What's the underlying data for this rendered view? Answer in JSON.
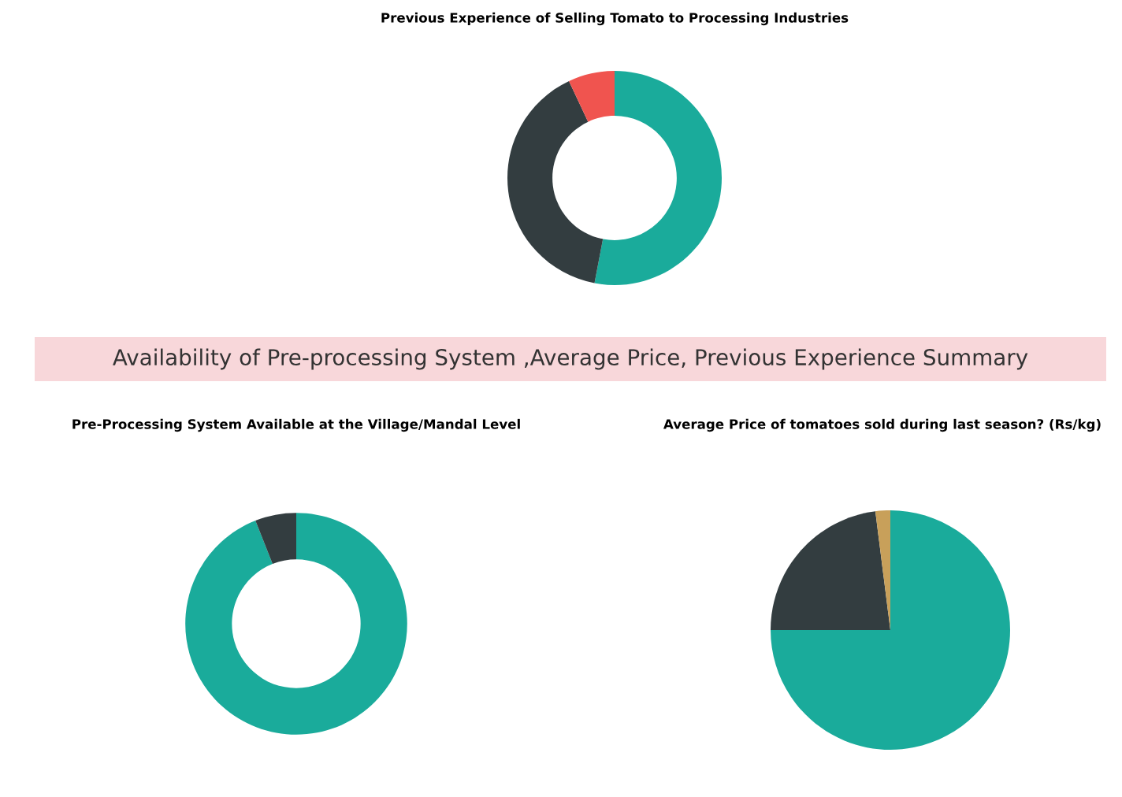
{
  "chart_data": [
    {
      "type": "donut",
      "title": "Previous Experience of Selling Tomato to Processing Industries",
      "categories": [
        null,
        null,
        null
      ],
      "values": [
        53,
        40,
        7
      ],
      "colors": [
        "#1aab9b",
        "#333d40",
        "#f0544f"
      ]
    },
    {
      "type": "other",
      "title": "Availability of Pre-processing System ,Average Price, Previous Experience Summary"
    },
    {
      "type": "donut",
      "title": "Pre-Processing System Available at the Village/Mandal Level",
      "categories": [
        null,
        null
      ],
      "values": [
        94,
        6
      ],
      "colors": [
        "#1aab9b",
        "#333d40"
      ]
    },
    {
      "type": "pie",
      "title": "Average Price of tomatoes sold during last season? (Rs/kg)",
      "categories": [
        null,
        null,
        null
      ],
      "values": [
        75,
        23,
        2
      ],
      "colors": [
        "#1aab9b",
        "#333d40",
        "#c8a05a"
      ]
    }
  ]
}
